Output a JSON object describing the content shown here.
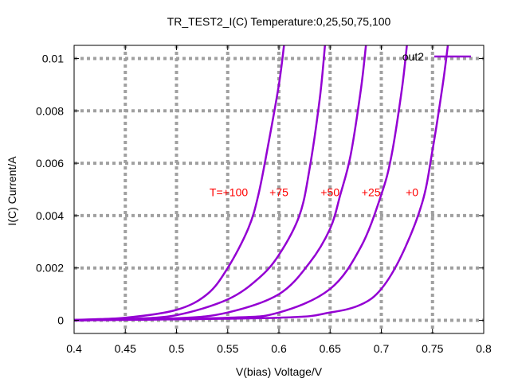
{
  "chart_data": {
    "type": "line",
    "title": "TR_TEST2_I(C) Temperature:0,25,50,75,100",
    "xlabel": "V(bias) Voltage/V",
    "ylabel": "I(C) Current/A",
    "xlim": [
      0.4,
      0.8
    ],
    "ylim": [
      -0.0005,
      0.0105
    ],
    "xticks": [
      0.4,
      0.45,
      0.5,
      0.55,
      0.6,
      0.65,
      0.7,
      0.75,
      0.8
    ],
    "xtick_labels": [
      "0.4",
      "0.45",
      "0.5",
      "0.55",
      "0.6",
      "0.65",
      "0.7",
      "0.75",
      "0.8"
    ],
    "yticks": [
      0,
      0.002,
      0.004,
      0.006,
      0.008,
      0.01
    ],
    "ytick_labels": [
      "0",
      "0.002",
      "0.004",
      "0.006",
      "0.008",
      "0.01"
    ],
    "grid": true,
    "legend": {
      "position": "top-right",
      "entries": [
        "out2"
      ]
    },
    "colors": {
      "line": "#9400d3",
      "grid": "#a0a0a0",
      "annotation": "#ff0000"
    },
    "series": [
      {
        "temperature": 100,
        "x": [
          0.4,
          0.45,
          0.5,
          0.53,
          0.55,
          0.57,
          0.58,
          0.59,
          0.6,
          0.605
        ],
        "y": [
          2e-05,
          0.0001,
          0.0004,
          0.001,
          0.002,
          0.0035,
          0.0048,
          0.0068,
          0.009,
          0.0105
        ]
      },
      {
        "temperature": 75,
        "x": [
          0.4,
          0.45,
          0.5,
          0.55,
          0.58,
          0.6,
          0.62,
          0.63,
          0.64,
          0.645
        ],
        "y": [
          1e-05,
          5e-05,
          0.0002,
          0.0008,
          0.0016,
          0.0025,
          0.004,
          0.0058,
          0.0085,
          0.0105
        ]
      },
      {
        "temperature": 50,
        "x": [
          0.4,
          0.5,
          0.55,
          0.6,
          0.63,
          0.65,
          0.66,
          0.67,
          0.68,
          0.685
        ],
        "y": [
          0.0,
          8e-05,
          0.0003,
          0.001,
          0.0022,
          0.0035,
          0.0048,
          0.0063,
          0.0088,
          0.0105
        ]
      },
      {
        "temperature": 25,
        "x": [
          0.4,
          0.55,
          0.6,
          0.65,
          0.68,
          0.7,
          0.71,
          0.72,
          0.725
        ],
        "y": [
          0.0,
          0.0001,
          0.0003,
          0.0012,
          0.0028,
          0.0048,
          0.0063,
          0.0088,
          0.0105
        ]
      },
      {
        "temperature": 0,
        "x": [
          0.4,
          0.6,
          0.65,
          0.68,
          0.7,
          0.72,
          0.74,
          0.75,
          0.76,
          0.765
        ],
        "y": [
          0.0,
          0.0001,
          0.0003,
          0.0006,
          0.0012,
          0.0025,
          0.0045,
          0.0065,
          0.009,
          0.0105
        ]
      }
    ],
    "annotations": [
      {
        "text": "T=+100",
        "x": 0.551,
        "y": 0.0049
      },
      {
        "text": "+75",
        "x": 0.6,
        "y": 0.0049
      },
      {
        "text": "+50",
        "x": 0.65,
        "y": 0.0049
      },
      {
        "text": "+25",
        "x": 0.69,
        "y": 0.0049
      },
      {
        "text": "+0",
        "x": 0.73,
        "y": 0.0049
      }
    ]
  }
}
